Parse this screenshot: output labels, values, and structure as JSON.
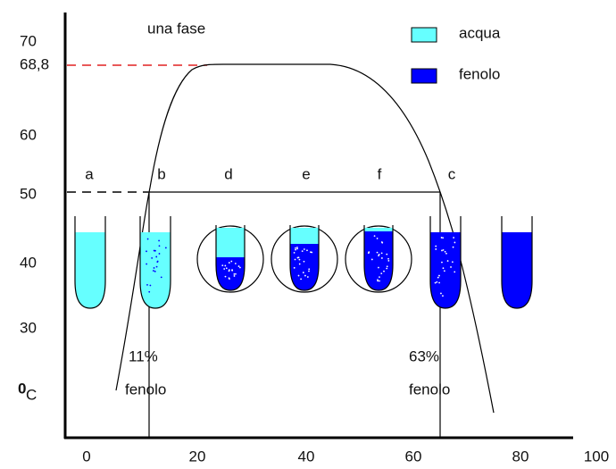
{
  "y_axis": {
    "ticks": [
      "70",
      "68,8",
      "60",
      "50",
      "40",
      "30"
    ],
    "unit_prefix": "0",
    "unit": "C"
  },
  "x_axis": {
    "ticks": [
      "0",
      "20",
      "40",
      "60",
      "80",
      "100"
    ]
  },
  "region_label": "una fase",
  "legend": [
    {
      "label": "acqua"
    },
    {
      "label": "fenolo"
    }
  ],
  "tubes": [
    "a",
    "b",
    "d",
    "e",
    "f",
    "c"
  ],
  "annotations": [
    {
      "line1": "11%",
      "line2": "fenolo"
    },
    {
      "line1": "63%",
      "line2": "fenolo"
    }
  ]
}
